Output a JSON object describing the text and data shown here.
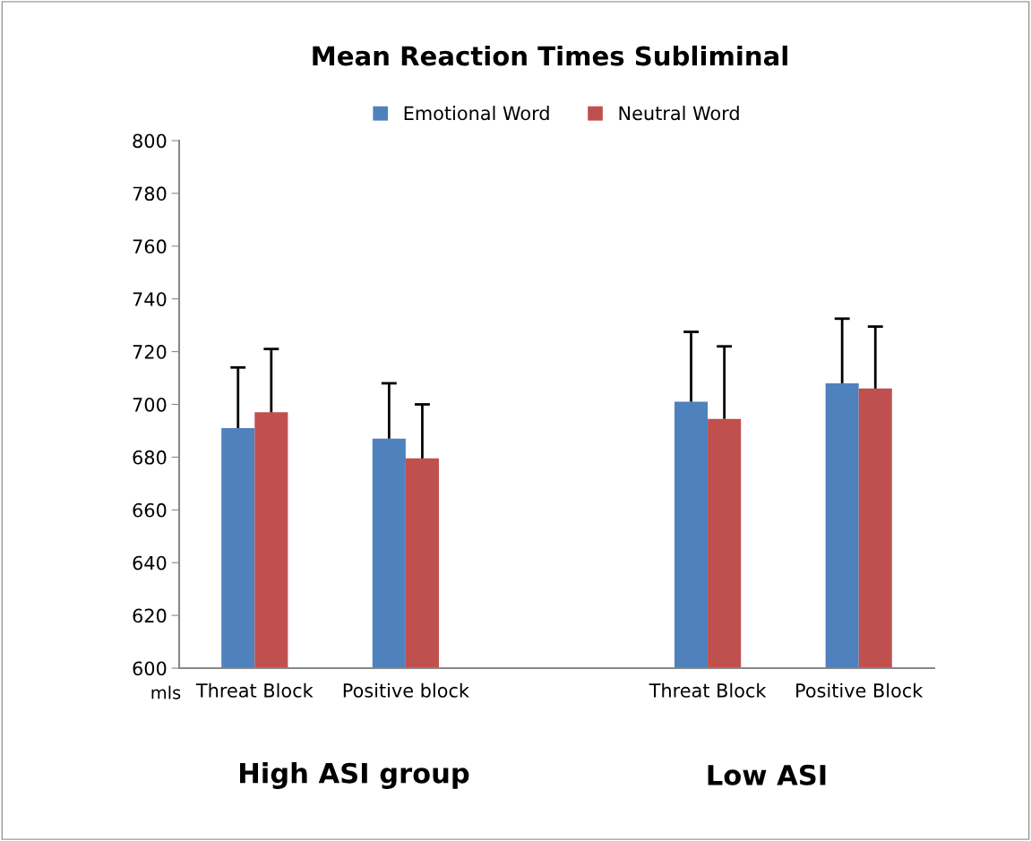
{
  "chart_data": {
    "type": "bar",
    "title": "Mean Reaction Times Subliminal",
    "categories": [
      "Threat Block",
      "Positive block",
      null,
      "Threat Block",
      "Positive Block"
    ],
    "series": [
      {
        "name": "Emotional Word",
        "color": "#4f81bd",
        "values": [
          691,
          687,
          null,
          701,
          708
        ],
        "errors": [
          [
            691,
            714
          ],
          [
            687,
            708
          ],
          null,
          [
            701,
            727.5
          ],
          [
            708,
            732.5
          ]
        ]
      },
      {
        "name": "Neutral Word",
        "color": "#c0504d",
        "values": [
          697,
          679.5,
          null,
          694.5,
          706
        ],
        "errors": [
          [
            697,
            721
          ],
          [
            679.5,
            700
          ],
          null,
          [
            694.5,
            722
          ],
          [
            706,
            729.5
          ]
        ]
      }
    ],
    "ylim": [
      600,
      800
    ],
    "yticks": [
      600,
      620,
      640,
      660,
      680,
      700,
      720,
      740,
      760,
      780,
      800
    ],
    "grid": false,
    "legend": "top",
    "annotations": [
      "mls",
      "High ASI group",
      "Low ASI"
    ]
  }
}
